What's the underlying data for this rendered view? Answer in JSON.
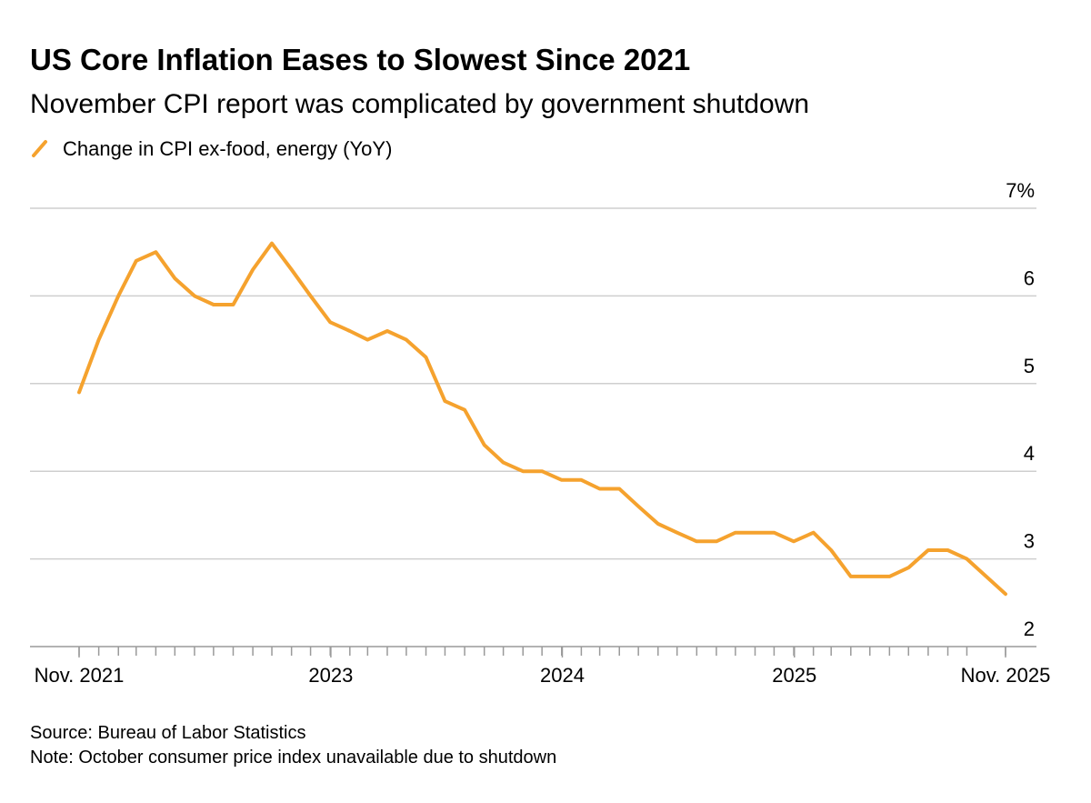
{
  "chart_data": {
    "type": "line",
    "title": "US Core Inflation Eases to Slowest Since 2021",
    "subtitle": "November CPI report was complicated by government shutdown",
    "source": "Source: Bureau of Labor Statistics",
    "note": "Note: October consumer price index unavailable due to shutdown",
    "x": [
      "2021-11",
      "2021-12",
      "2022-01",
      "2022-02",
      "2022-03",
      "2022-04",
      "2022-05",
      "2022-06",
      "2022-07",
      "2022-08",
      "2022-09",
      "2022-10",
      "2022-11",
      "2022-12",
      "2023-01",
      "2023-02",
      "2023-03",
      "2023-04",
      "2023-05",
      "2023-06",
      "2023-07",
      "2023-08",
      "2023-09",
      "2023-10",
      "2023-11",
      "2023-12",
      "2024-01",
      "2024-02",
      "2024-03",
      "2024-04",
      "2024-05",
      "2024-06",
      "2024-07",
      "2024-08",
      "2024-09",
      "2024-10",
      "2024-11",
      "2024-12",
      "2025-01",
      "2025-02",
      "2025-03",
      "2025-04",
      "2025-05",
      "2025-06",
      "2025-07",
      "2025-08",
      "2025-09",
      "2025-11"
    ],
    "series": [
      {
        "name": "Change in CPI ex-food, energy (YoY)",
        "color": "#f5a22e",
        "values": [
          4.9,
          5.5,
          6.0,
          6.4,
          6.5,
          6.2,
          6.0,
          5.9,
          5.9,
          6.3,
          6.6,
          6.3,
          6.0,
          5.7,
          5.6,
          5.5,
          5.6,
          5.5,
          5.3,
          4.8,
          4.7,
          4.3,
          4.1,
          4.0,
          4.0,
          3.9,
          3.9,
          3.8,
          3.8,
          3.6,
          3.4,
          3.3,
          3.2,
          3.2,
          3.3,
          3.3,
          3.3,
          3.2,
          3.3,
          3.1,
          2.8,
          2.8,
          2.8,
          2.9,
          3.1,
          3.1,
          3.0,
          2.6
        ]
      }
    ],
    "xlim": [
      "2021-11-30",
      "2025-11-30"
    ],
    "xticks": [
      {
        "value": "2021-11-30",
        "label": "Nov. 2021"
      },
      {
        "value": "2023-01-01",
        "label": "2023"
      },
      {
        "value": "2024-01-01",
        "label": "2024"
      },
      {
        "value": "2025-01-01",
        "label": "2025"
      },
      {
        "value": "2025-11-30",
        "label": "Nov. 2025"
      }
    ],
    "ylim": [
      2,
      7
    ],
    "yticks": [
      2,
      3,
      4,
      5,
      6,
      {
        "value": 7,
        "label": "7%"
      }
    ],
    "grid": true
  }
}
